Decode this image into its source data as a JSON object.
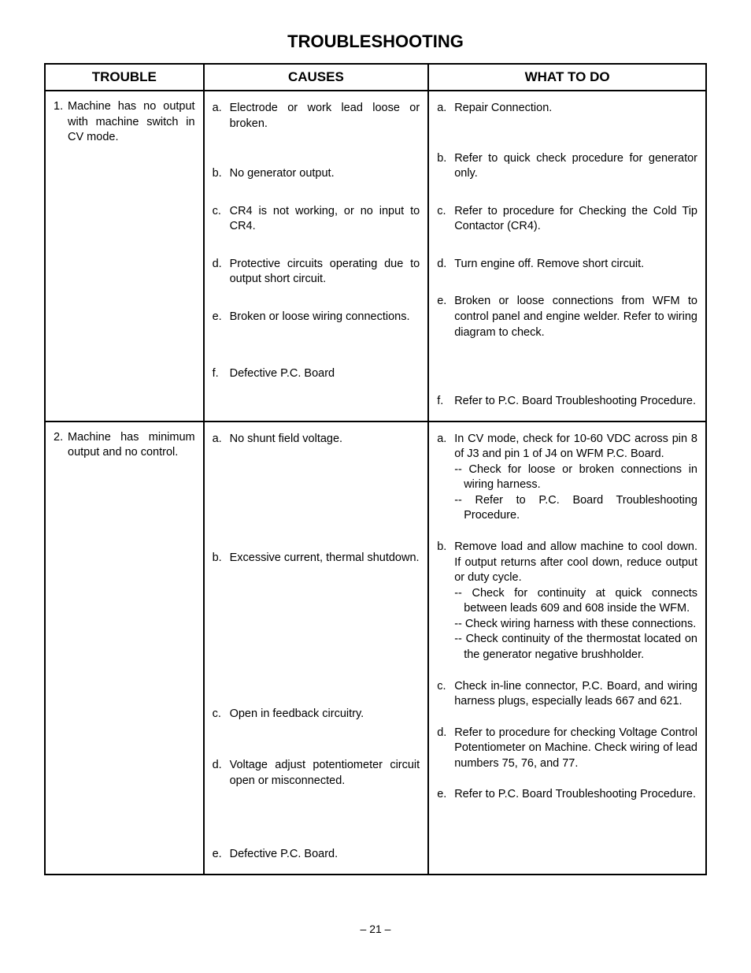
{
  "title": "TROUBLESHOOTING",
  "headers": {
    "trouble": "TROUBLE",
    "causes": "CAUSES",
    "what": "WHAT TO DO"
  },
  "rows": [
    {
      "trouble_num": "1.",
      "trouble_text": "Machine has no output with machine switch in CV mode.",
      "causes": [
        {
          "lbl": "a.",
          "txt": "Electrode or work lead loose or broken."
        },
        {
          "lbl": "b.",
          "txt": "No generator output."
        },
        {
          "lbl": "c.",
          "txt": "CR4 is not working, or no input to CR4."
        },
        {
          "lbl": "d.",
          "txt": "Protective circuits operating due to output short circuit."
        },
        {
          "lbl": "e.",
          "txt": "Broken or loose wiring connec­tions."
        },
        {
          "lbl": "f.",
          "txt": "Defective P.C. Board"
        }
      ],
      "what": [
        {
          "lbl": "a.",
          "txt": "Repair Connection."
        },
        {
          "lbl": "b.",
          "txt": "Refer to quick check procedure for generator only."
        },
        {
          "lbl": "c.",
          "txt": "Refer to procedure for Checking the Cold Tip Contactor (CR4)."
        },
        {
          "lbl": "d.",
          "txt": "Turn engine off.  Remove short circuit."
        },
        {
          "lbl": "e.",
          "txt": "Broken or loose connections from WFM to control panel and engine welder.  Refer to wiring diagram to check."
        },
        {
          "lbl": "f.",
          "txt": "Refer to P.C. Board Troubleshooting Procedure."
        }
      ]
    },
    {
      "trouble_num": "2.",
      "trouble_text": "Machine has minimum output and no control.",
      "causes": [
        {
          "lbl": "a.",
          "txt": "No shunt field voltage."
        },
        {
          "lbl": "b.",
          "txt": "Excessive current, thermal shut­down."
        },
        {
          "lbl": "c.",
          "txt": "Open in feedback circuitry."
        },
        {
          "lbl": "d.",
          "txt": "Voltage adjust potentiometer circuit open or misconnected."
        },
        {
          "lbl": "e.",
          "txt": "Defective P.C. Board."
        }
      ],
      "what": [
        {
          "lbl": "a.",
          "txt": "In CV mode, check for 10-60 VDC across pin 8 of J3 and pin 1 of J4 on WFM P.C. Board.",
          "subs": [
            "-- Check for loose or broken connections in wiring harness.",
            "-- Refer to P.C. Board Troubleshooting Procedure."
          ]
        },
        {
          "lbl": "b.",
          "txt": "Remove load and allow machine to cool down.  If output returns after cool down, reduce output or duty cycle.",
          "subs": [
            "-- Check for continuity at quick con­nects between leads 609 and 608 inside the WFM.",
            "-- Check wiring harness with these connections.",
            "-- Check continuity of the thermostat located on the generator negative brushholder."
          ]
        },
        {
          "lbl": "c.",
          "txt": "Check in-line connector, P.C. Board, and wiring harness plugs, especially leads 667 and 621."
        },
        {
          "lbl": "d.",
          "txt": "Refer to procedure for checking Voltage Control Potentiometer on Machine.  Check wiring of lead num­bers 75, 76, and 77."
        },
        {
          "lbl": "e.",
          "txt": "Refer to P.C. Board Troubleshooting Procedure."
        }
      ]
    }
  ],
  "page_number": "– 21 –",
  "row1_what_spacing": [
    2,
    44,
    28,
    28,
    28,
    68
  ],
  "row1_cause_spacing": [
    2,
    44,
    28,
    28,
    28,
    52
  ],
  "row2_cause_spacing": [
    2,
    132,
    178,
    46,
    74
  ],
  "row2_what_spacing": [
    2,
    20,
    20,
    20,
    20
  ],
  "colors": {
    "text": "#000000",
    "background": "#ffffff",
    "border": "#000000"
  }
}
